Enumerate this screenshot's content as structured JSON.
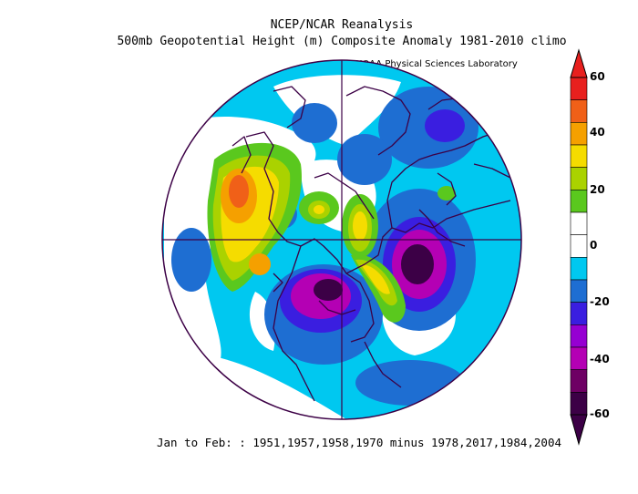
{
  "title": "NCEP/NCAR Reanalysis",
  "subtitle": "500mb Geopotential Height (m) Composite Anomaly 1981-2010 climo",
  "credit": "NOAA Physical Sciences Laboratory",
  "footer": "Jan to Feb: : 1951,1957,1958,1970 minus 1978,2017,1984,2004",
  "colorbar": {
    "labels": [
      "60",
      "40",
      "20",
      "0",
      "-20",
      "-40",
      "-60"
    ],
    "colors": [
      "#e8201e",
      "#f06018",
      "#f5a000",
      "#f5dc00",
      "#aad200",
      "#5ac81e",
      "#ffffff",
      "#ffffff",
      "#00c8f0",
      "#1e6ed2",
      "#3a1ee0",
      "#9600d2",
      "#b400b4",
      "#6e0064",
      "#3c0046"
    ]
  },
  "map": {
    "projection": "north-polar-stereographic",
    "ocean_color": "#ffffff",
    "coast_color": "#3c0046"
  }
}
